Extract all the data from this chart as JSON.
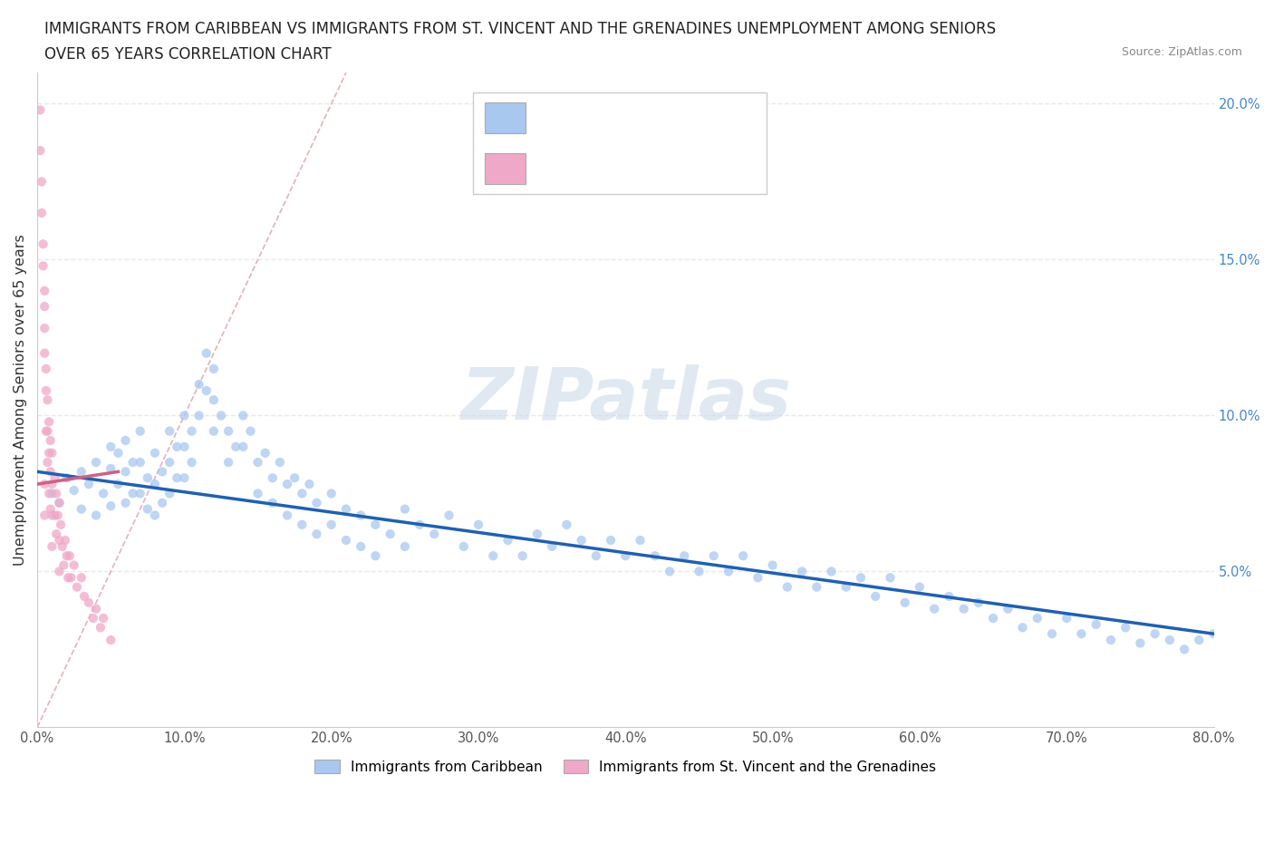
{
  "title_line1": "IMMIGRANTS FROM CARIBBEAN VS IMMIGRANTS FROM ST. VINCENT AND THE GRENADINES UNEMPLOYMENT AMONG SENIORS",
  "title_line2": "OVER 65 YEARS CORRELATION CHART",
  "source": "Source: ZipAtlas.com",
  "ylabel": "Unemployment Among Seniors over 65 years",
  "xlim": [
    0.0,
    0.8
  ],
  "ylim": [
    0.0,
    0.21
  ],
  "xticks": [
    0.0,
    0.1,
    0.2,
    0.3,
    0.4,
    0.5,
    0.6,
    0.7,
    0.8
  ],
  "xticklabels": [
    "0.0%",
    "10.0%",
    "20.0%",
    "30.0%",
    "40.0%",
    "50.0%",
    "60.0%",
    "70.0%",
    "80.0%"
  ],
  "yticks_left": [],
  "yticks_right": [
    0.05,
    0.1,
    0.15,
    0.2
  ],
  "yticklabels_right": [
    "5.0%",
    "10.0%",
    "15.0%",
    "20.0%"
  ],
  "watermark": "ZIPatlas",
  "color_caribbean": "#a8c8f0",
  "color_stvincent": "#f0a8c8",
  "color_trendline_caribbean": "#2060b0",
  "color_trendline_stvincent": "#d06080",
  "color_diagonal": "#dddddd",
  "scatter_alpha": 0.75,
  "scatter_size": 55,
  "caribbean_x": [
    0.01,
    0.015,
    0.02,
    0.025,
    0.03,
    0.03,
    0.035,
    0.04,
    0.04,
    0.045,
    0.05,
    0.05,
    0.05,
    0.055,
    0.055,
    0.06,
    0.06,
    0.06,
    0.065,
    0.065,
    0.07,
    0.07,
    0.07,
    0.075,
    0.075,
    0.08,
    0.08,
    0.08,
    0.085,
    0.085,
    0.09,
    0.09,
    0.09,
    0.095,
    0.095,
    0.1,
    0.1,
    0.1,
    0.105,
    0.105,
    0.11,
    0.11,
    0.115,
    0.115,
    0.12,
    0.12,
    0.12,
    0.125,
    0.13,
    0.13,
    0.135,
    0.14,
    0.14,
    0.145,
    0.15,
    0.15,
    0.155,
    0.16,
    0.16,
    0.165,
    0.17,
    0.17,
    0.175,
    0.18,
    0.18,
    0.185,
    0.19,
    0.19,
    0.2,
    0.2,
    0.21,
    0.21,
    0.22,
    0.22,
    0.23,
    0.23,
    0.24,
    0.25,
    0.25,
    0.26,
    0.27,
    0.28,
    0.29,
    0.3,
    0.31,
    0.32,
    0.33,
    0.34,
    0.35,
    0.36,
    0.37,
    0.38,
    0.39,
    0.4,
    0.41,
    0.42,
    0.43,
    0.44,
    0.45,
    0.46,
    0.47,
    0.48,
    0.49,
    0.5,
    0.51,
    0.52,
    0.53,
    0.54,
    0.55,
    0.56,
    0.57,
    0.58,
    0.59,
    0.6,
    0.61,
    0.62,
    0.63,
    0.64,
    0.65,
    0.66,
    0.67,
    0.68,
    0.69,
    0.7,
    0.71,
    0.72,
    0.73,
    0.74,
    0.75,
    0.76,
    0.77,
    0.78,
    0.79,
    0.8
  ],
  "caribbean_y": [
    0.075,
    0.072,
    0.08,
    0.076,
    0.082,
    0.07,
    0.078,
    0.085,
    0.068,
    0.075,
    0.09,
    0.083,
    0.071,
    0.088,
    0.078,
    0.092,
    0.082,
    0.072,
    0.085,
    0.075,
    0.095,
    0.085,
    0.075,
    0.08,
    0.07,
    0.088,
    0.078,
    0.068,
    0.082,
    0.072,
    0.095,
    0.085,
    0.075,
    0.09,
    0.08,
    0.1,
    0.09,
    0.08,
    0.095,
    0.085,
    0.11,
    0.1,
    0.12,
    0.108,
    0.115,
    0.105,
    0.095,
    0.1,
    0.095,
    0.085,
    0.09,
    0.1,
    0.09,
    0.095,
    0.085,
    0.075,
    0.088,
    0.08,
    0.072,
    0.085,
    0.078,
    0.068,
    0.08,
    0.075,
    0.065,
    0.078,
    0.072,
    0.062,
    0.075,
    0.065,
    0.07,
    0.06,
    0.068,
    0.058,
    0.065,
    0.055,
    0.062,
    0.07,
    0.058,
    0.065,
    0.062,
    0.068,
    0.058,
    0.065,
    0.055,
    0.06,
    0.055,
    0.062,
    0.058,
    0.065,
    0.06,
    0.055,
    0.06,
    0.055,
    0.06,
    0.055,
    0.05,
    0.055,
    0.05,
    0.055,
    0.05,
    0.055,
    0.048,
    0.052,
    0.045,
    0.05,
    0.045,
    0.05,
    0.045,
    0.048,
    0.042,
    0.048,
    0.04,
    0.045,
    0.038,
    0.042,
    0.038,
    0.04,
    0.035,
    0.038,
    0.032,
    0.035,
    0.03,
    0.035,
    0.03,
    0.033,
    0.028,
    0.032,
    0.027,
    0.03,
    0.028,
    0.025,
    0.028,
    0.03
  ],
  "stvincent_x": [
    0.002,
    0.002,
    0.003,
    0.003,
    0.004,
    0.004,
    0.005,
    0.005,
    0.005,
    0.005,
    0.005,
    0.005,
    0.006,
    0.006,
    0.006,
    0.007,
    0.007,
    0.007,
    0.008,
    0.008,
    0.008,
    0.009,
    0.009,
    0.009,
    0.01,
    0.01,
    0.01,
    0.01,
    0.012,
    0.012,
    0.013,
    0.013,
    0.014,
    0.015,
    0.015,
    0.015,
    0.016,
    0.017,
    0.018,
    0.019,
    0.02,
    0.021,
    0.022,
    0.023,
    0.025,
    0.027,
    0.03,
    0.032,
    0.035,
    0.038,
    0.04,
    0.043,
    0.045,
    0.05
  ],
  "stvincent_y": [
    0.198,
    0.185,
    0.175,
    0.165,
    0.155,
    0.148,
    0.14,
    0.135,
    0.128,
    0.12,
    0.078,
    0.068,
    0.115,
    0.108,
    0.095,
    0.105,
    0.095,
    0.085,
    0.098,
    0.088,
    0.075,
    0.092,
    0.082,
    0.07,
    0.088,
    0.078,
    0.068,
    0.058,
    0.08,
    0.068,
    0.075,
    0.062,
    0.068,
    0.072,
    0.06,
    0.05,
    0.065,
    0.058,
    0.052,
    0.06,
    0.055,
    0.048,
    0.055,
    0.048,
    0.052,
    0.045,
    0.048,
    0.042,
    0.04,
    0.035,
    0.038,
    0.032,
    0.035,
    0.028
  ],
  "trendline_caribbean_x0": 0.0,
  "trendline_caribbean_y0": 0.082,
  "trendline_caribbean_x1": 0.8,
  "trendline_caribbean_y1": 0.03,
  "trendline_stvincent_x0": 0.0,
  "trendline_stvincent_y0": 0.078,
  "trendline_stvincent_x1": 0.055,
  "trendline_stvincent_y1": 0.082,
  "background_color": "#ffffff",
  "grid_color": "#e8e8e8",
  "axis_color": "#cccccc"
}
